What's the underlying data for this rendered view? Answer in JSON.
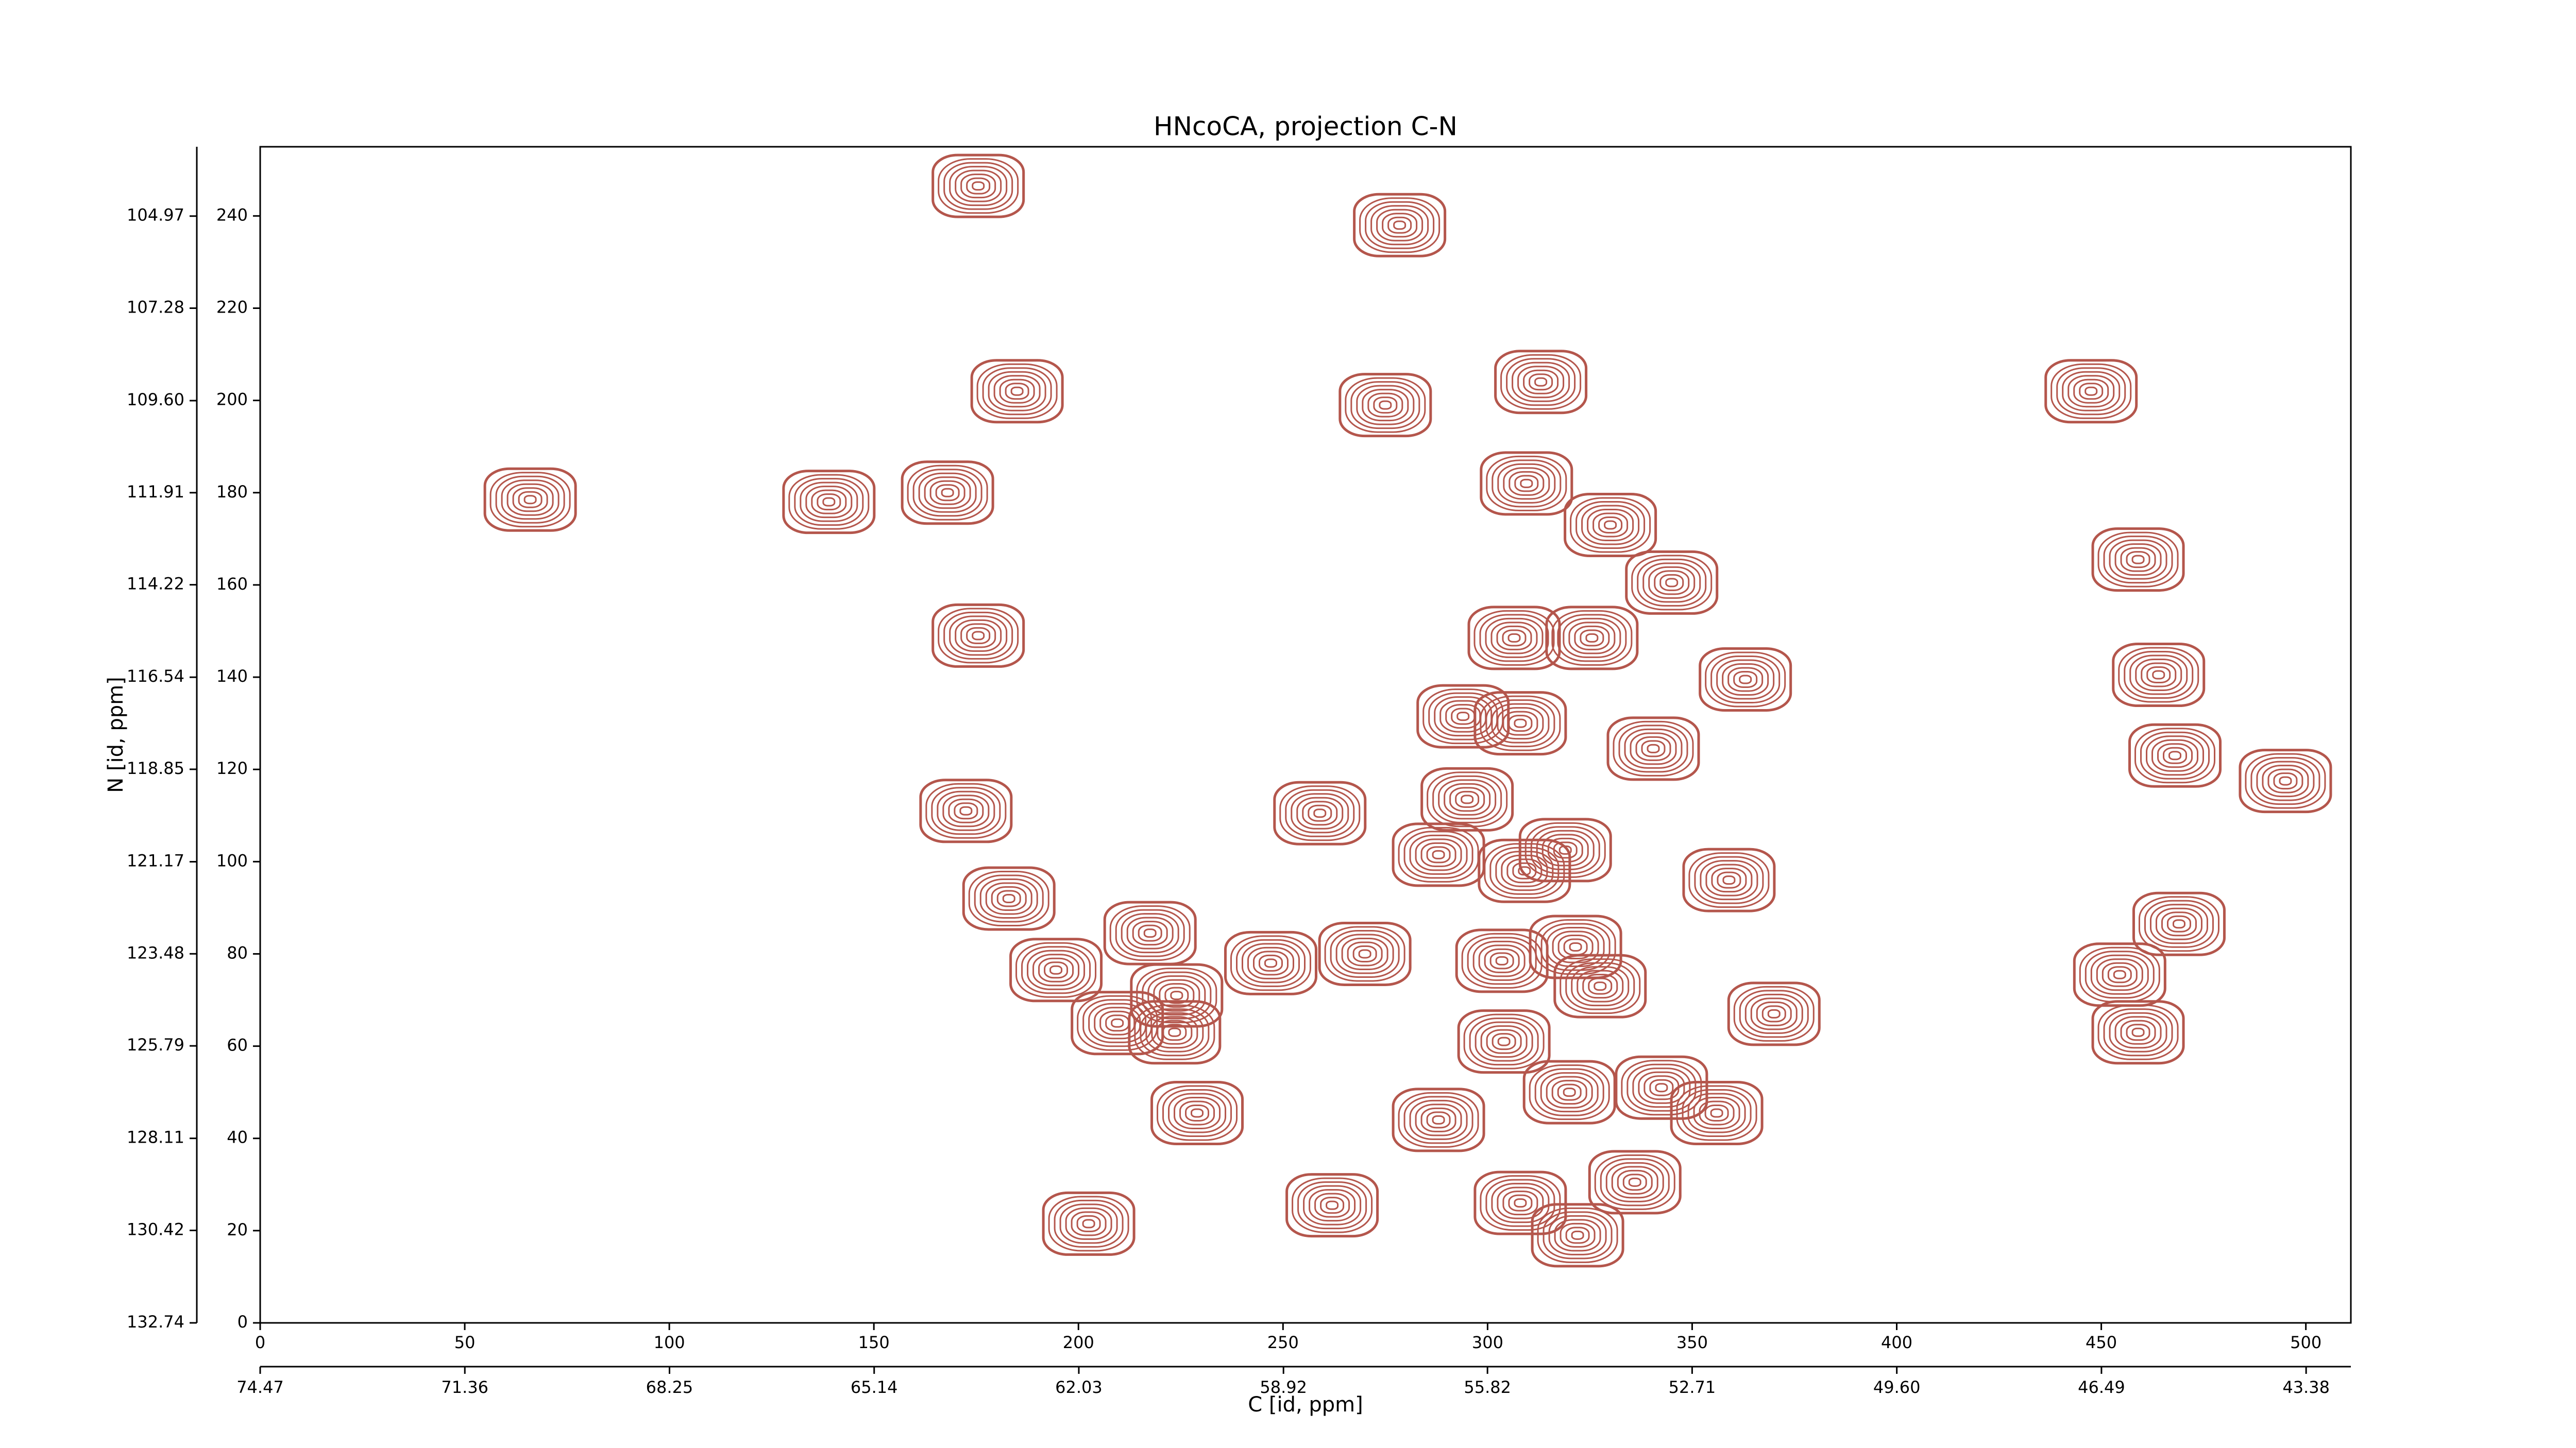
{
  "chart_data": {
    "type": "contour",
    "title": "HNcoCA, projection C-N",
    "x_label": "C [id, ppm]",
    "y_label": "N [id, ppm]",
    "color": "#b4564c",
    "xlim": [
      0,
      511
    ],
    "ylim": [
      0,
      255
    ],
    "xticks": [
      0,
      50,
      100,
      150,
      200,
      250,
      300,
      350,
      400,
      450,
      500
    ],
    "yticks": [
      0,
      20,
      40,
      60,
      80,
      100,
      120,
      140,
      160,
      180,
      200,
      220,
      240
    ],
    "x2lim": [
      74.47,
      42.7
    ],
    "x2ticks": [
      74.47,
      71.36,
      68.25,
      65.14,
      62.03,
      58.92,
      55.82,
      52.71,
      {
        "value": 49.6,
        "label": "49.60"
      },
      46.49,
      43.38
    ],
    "y2lim": [
      132.74,
      103.23
    ],
    "y2ticks": [
      132.74,
      130.42,
      128.11,
      125.79,
      123.48,
      121.17,
      118.85,
      116.54,
      114.22,
      111.91,
      {
        "value": 109.6,
        "label": "109.60"
      },
      107.28,
      104.97
    ],
    "peaks": {
      "x": [
        175.5,
        278.5,
        185,
        275,
        313,
        447.5,
        168,
        66,
        139,
        309.5,
        330,
        459,
        345,
        175.5,
        306.5,
        325.5,
        363,
        464,
        308,
        294,
        340.5,
        468,
        495,
        259,
        172.5,
        295,
        288,
        309,
        319,
        359,
        183,
        217.5,
        194.5,
        247,
        270,
        303.5,
        321.5,
        469,
        454.5,
        224,
        209.5,
        223.5,
        370,
        304,
        327.5,
        459,
        229,
        288,
        320,
        342.5,
        356,
        202.5,
        262,
        308,
        322,
        336
      ],
      "y": [
        246.5,
        238,
        202,
        199,
        204,
        202,
        180,
        178.5,
        178,
        182,
        173,
        165.5,
        160.5,
        149,
        148.5,
        148.5,
        139.5,
        140.5,
        130,
        131.5,
        124.5,
        123,
        117.5,
        110.5,
        111,
        113.5,
        101.5,
        98,
        102.5,
        96,
        92,
        84.5,
        76.5,
        78,
        80,
        78.5,
        81.5,
        86.5,
        75.5,
        71,
        65,
        63,
        67,
        61,
        73,
        63,
        45.5,
        44,
        50,
        51,
        45.5,
        21.5,
        25.5,
        26,
        19,
        30.5
      ]
    }
  }
}
